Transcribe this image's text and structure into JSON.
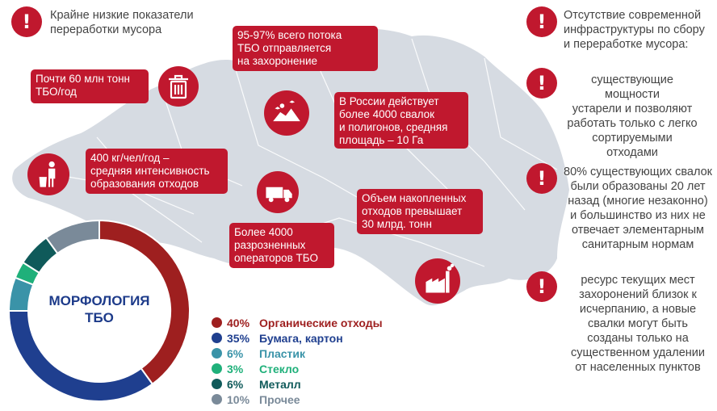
{
  "colors": {
    "accent_red": "#c0182e",
    "map_gray": "#d6dbe2"
  },
  "left_facts": [
    {
      "icon": "exclamation-icon",
      "text": "Крайне низкие показатели\nпереработки мусора"
    }
  ],
  "map_callouts": [
    {
      "text": "Почти 60 млн тонн\nТБО/год",
      "icon": "trash-bin-icon"
    },
    {
      "text": "95-97% всего потока\nТБО отправляется\nна захоронение",
      "icon": "landfill-icon"
    },
    {
      "text": " В России действует\nболее 4000 свалок\nи полигонов, средняя\nплощадь – 10 Га",
      "icon": null
    },
    {
      "text": "400 кг/чел/год –\nсредняя интенсивность\nобразования отходов",
      "icon": "person-disposing-trash-icon"
    },
    {
      "text": "Объем накопленных\nотходов превышает\n30 млрд. тонн",
      "icon": null
    },
    {
      "text": "Более 4000\nразрозненных\nоператоров ТБО",
      "icon": "garbage-truck-icon"
    },
    {
      "text": "",
      "icon": "factory-icon"
    }
  ],
  "right_facts": [
    {
      "icon": "exclamation-icon",
      "text": "Отсутствие современной\nинфраструктуры по сбору\nи переработке мусора:"
    },
    {
      "icon": "exclamation-icon",
      "text": "существующие мощности\nустарели и позволяют\nработать только с легко\nсортируемыми\nотходами"
    },
    {
      "icon": "exclamation-icon",
      "text": "80% существующих свалок\nбыли образованы 20 лет\nназад (многие незаконно)\nи большинство из них не\nотвечает элементарным\nсанитарным нормам"
    },
    {
      "icon": "exclamation-icon",
      "text": "ресурс текущих мест\nзахоронений близок к\nисчерпанию, а новые\nсвалки могут быть\nсозданы только на\nсущественном удалении\nот населенных пунктов"
    }
  ],
  "chart_data": {
    "type": "pie",
    "donut": true,
    "title": "МОРФОЛОГИЯ\nТБО",
    "categories": [
      "Органические отходы",
      "Бумага, картон",
      "Пластик",
      "Стекло",
      "Металл",
      "Прочее"
    ],
    "values": [
      40,
      35,
      6,
      3,
      6,
      10
    ],
    "labels": [
      "40%",
      "35%",
      "6%",
      "3%",
      "6%",
      "10%"
    ],
    "colors": [
      "#9e1f1f",
      "#1f3f8f",
      "#3a93a8",
      "#1fb07a",
      "#0f5a5a",
      "#7a8a99"
    ],
    "legend_position": "right"
  }
}
